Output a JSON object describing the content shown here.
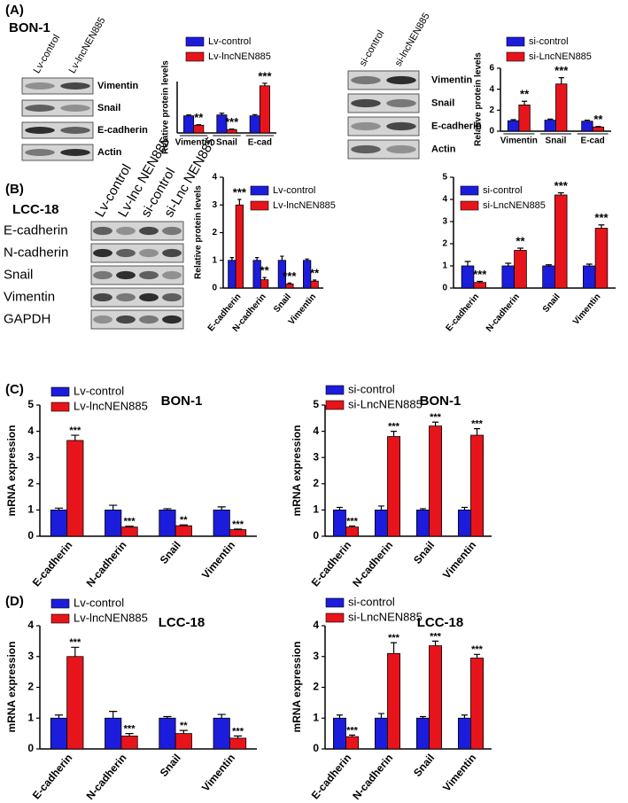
{
  "panels": [
    {
      "label": "(A)",
      "cell_line": "BON-1"
    },
    {
      "label": "(B)",
      "cell_line": "LCC-18"
    },
    {
      "label": "(C)"
    },
    {
      "label": "(D)"
    }
  ],
  "blots": [
    {
      "lanes": [
        "Lv-control",
        "Lv-lncNEN885"
      ],
      "proteins": [
        "Vimentin",
        "Snail",
        "E-cadherin",
        "Actin"
      ]
    },
    {
      "lanes": [
        "si-control",
        "si-lncNEN885"
      ],
      "proteins": [
        "Vimentin",
        "Snail",
        "E-cadherin",
        "Actin"
      ]
    },
    {
      "lanes": [
        "Lv-control",
        "Lv-lnc NEN885",
        "si-control",
        "si-Lnc NEN885"
      ],
      "proteins": [
        "E-cadherin",
        "N-cadherin",
        "Snail",
        "Vimentin",
        "GAPDH"
      ]
    }
  ],
  "chart_data": [
    {
      "type": "bar",
      "y_label": "Relative protein levels",
      "categories": [
        "Vimentin",
        "Snail",
        "E-cad"
      ],
      "ylim": [
        0,
        3
      ],
      "series": [
        {
          "name": "Lv-control",
          "color": "#1c1cdc",
          "values": [
            1,
            1.05,
            1
          ],
          "errors": [
            0.05,
            0.1,
            0.07
          ]
        },
        {
          "name": "Lv-lncNEN885",
          "color": "#e8141b",
          "values": [
            0.45,
            0.2,
            2.75
          ],
          "errors": [
            0.03,
            0.03,
            0.15
          ]
        }
      ],
      "annotations": [
        "**",
        "***",
        "***"
      ]
    },
    {
      "type": "bar",
      "y_label": "Relative protein levels",
      "categories": [
        "Vimentin",
        "Snail",
        "E-cad"
      ],
      "ylim": [
        0,
        6
      ],
      "yticks": [
        0,
        2,
        4,
        6
      ],
      "series": [
        {
          "name": "si-control",
          "color": "#1c1cdc",
          "values": [
            1,
            1.05,
            0.95
          ],
          "errors": [
            0.1,
            0.1,
            0.1
          ]
        },
        {
          "name": "si-LncNEN885",
          "color": "#e8141b",
          "values": [
            2.5,
            4.5,
            0.4
          ],
          "errors": [
            0.35,
            0.6,
            0.05
          ]
        }
      ],
      "annotations": [
        "**",
        "***",
        "**"
      ]
    },
    {
      "type": "bar",
      "y_label": "Relative protein levels",
      "categories": [
        "E-cadherin",
        "N-cadherin",
        "Snail",
        "Vimentin"
      ],
      "ylim": [
        0,
        4
      ],
      "yticks": [
        0,
        1,
        2,
        3,
        4
      ],
      "series": [
        {
          "name": "Lv-control",
          "color": "#1c1cdc",
          "values": [
            1,
            1,
            1,
            1
          ],
          "errors": [
            0.1,
            0.1,
            0.15,
            0.05
          ]
        },
        {
          "name": "Lv-lncNEN885",
          "color": "#e8141b",
          "values": [
            3,
            0.3,
            0.15,
            0.25
          ],
          "errors": [
            0.2,
            0.08,
            0.03,
            0.04
          ]
        }
      ],
      "annotations": [
        "***",
        "**",
        "***",
        "**"
      ]
    },
    {
      "type": "bar",
      "categories": [
        "E-cadherin",
        "N-cadherin",
        "Snail",
        "Vimentin"
      ],
      "ylim": [
        0,
        5
      ],
      "yticks": [
        0,
        1,
        2,
        3,
        4,
        5
      ],
      "series": [
        {
          "name": "si-control",
          "color": "#1c1cdc",
          "values": [
            1,
            1,
            1,
            1
          ],
          "errors": [
            0.2,
            0.12,
            0.05,
            0.08
          ]
        },
        {
          "name": "si-LncNEN885",
          "color": "#e8141b",
          "values": [
            0.25,
            1.7,
            4.2,
            2.7
          ],
          "errors": [
            0.05,
            0.1,
            0.1,
            0.15
          ]
        }
      ],
      "annotations": [
        "***",
        "**",
        "***",
        "***"
      ]
    },
    {
      "type": "bar",
      "title": "BON-1",
      "y_label": "mRNA expression",
      "categories": [
        "E-cadherin",
        "N-cadherin",
        "Snail",
        "Vimentin"
      ],
      "ylim": [
        0,
        5
      ],
      "yticks": [
        0,
        1,
        2,
        3,
        4,
        5
      ],
      "series": [
        {
          "name": "Lv-control",
          "color": "#1c1cdc",
          "values": [
            1,
            1,
            1,
            1
          ],
          "errors": [
            0.07,
            0.18,
            0.05,
            0.12
          ]
        },
        {
          "name": "Lv-lncNEN885",
          "color": "#e8141b",
          "values": [
            3.65,
            0.35,
            0.4,
            0.25
          ],
          "errors": [
            0.2,
            0.03,
            0.03,
            0.02
          ]
        }
      ],
      "annotations": [
        "***",
        "***",
        "**",
        "***"
      ]
    },
    {
      "type": "bar",
      "title": "BON-1",
      "y_label": "mRNA expression",
      "categories": [
        "E-cadherin",
        "N-cadherin",
        "Snail",
        "Vimentin"
      ],
      "ylim": [
        0,
        5
      ],
      "yticks": [
        0,
        1,
        2,
        3,
        4,
        5
      ],
      "series": [
        {
          "name": "si-control",
          "color": "#1c1cdc",
          "values": [
            1,
            1,
            1,
            1
          ],
          "errors": [
            0.1,
            0.15,
            0.05,
            0.1
          ]
        },
        {
          "name": "si-LncNEN885",
          "color": "#e8141b",
          "values": [
            0.35,
            3.8,
            4.2,
            3.85
          ],
          "errors": [
            0.04,
            0.2,
            0.15,
            0.25
          ]
        }
      ],
      "annotations": [
        "***",
        "***",
        "***",
        "***"
      ]
    },
    {
      "type": "bar",
      "title": "LCC-18",
      "y_label": "mRNA expression",
      "categories": [
        "E-cadherin",
        "N-cadherin",
        "Snail",
        "Vimentin"
      ],
      "ylim": [
        0,
        4
      ],
      "yticks": [
        0,
        1,
        2,
        3,
        4
      ],
      "series": [
        {
          "name": "Lv-control",
          "color": "#1c1cdc",
          "values": [
            1,
            1,
            1,
            1
          ],
          "errors": [
            0.1,
            0.22,
            0.05,
            0.12
          ]
        },
        {
          "name": "Lv-lncNEN885",
          "color": "#e8141b",
          "values": [
            3,
            0.42,
            0.5,
            0.35
          ],
          "errors": [
            0.3,
            0.08,
            0.1,
            0.07
          ]
        }
      ],
      "annotations": [
        "***",
        "***",
        "**",
        "***"
      ]
    },
    {
      "type": "bar",
      "title": "LCC-18",
      "y_label": "mRNA expression",
      "categories": [
        "E-cadherin",
        "N-cadherin",
        "Snail",
        "Vimentin"
      ],
      "ylim": [
        0,
        4
      ],
      "yticks": [
        0,
        1,
        2,
        3,
        4
      ],
      "series": [
        {
          "name": "si-control",
          "color": "#1c1cdc",
          "values": [
            1,
            1,
            1,
            1
          ],
          "errors": [
            0.1,
            0.15,
            0.05,
            0.1
          ]
        },
        {
          "name": "si-LncNEN885",
          "color": "#e8141b",
          "values": [
            0.4,
            3.1,
            3.35,
            2.95
          ],
          "errors": [
            0.05,
            0.35,
            0.15,
            0.12
          ]
        }
      ],
      "annotations": [
        "***",
        "***",
        "***",
        "***"
      ]
    }
  ]
}
